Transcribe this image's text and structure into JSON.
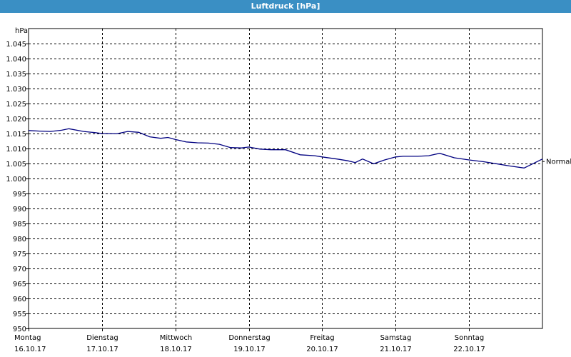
{
  "window": {
    "title": "Luftdruck [hPa]"
  },
  "chart_data": {
    "type": "line",
    "title": "Luftdruck [hPa]",
    "ylabel": "hPa",
    "xlabel": "",
    "ylim": [
      950,
      1050
    ],
    "xlim": [
      0,
      7
    ],
    "grid": true,
    "y_ticks": [
      950,
      955,
      960,
      965,
      970,
      975,
      980,
      985,
      990,
      995,
      1000,
      1005,
      1010,
      1015,
      1020,
      1025,
      1030,
      1035,
      1040,
      1045
    ],
    "y_tick_labels": [
      "950",
      "955",
      "960",
      "965",
      "970",
      "975",
      "980",
      "985",
      "990",
      "995",
      "1.000",
      "1.005",
      "1.010",
      "1.015",
      "1.020",
      "1.025",
      "1.030",
      "1.035",
      "1.040",
      "1.045"
    ],
    "x_tick_positions": [
      0,
      1,
      2,
      3,
      4,
      5,
      6
    ],
    "x_tick_labels": [
      {
        "day": "Montag",
        "date": "16.10.17"
      },
      {
        "day": "Dienstag",
        "date": "17.10.17"
      },
      {
        "day": "Mittwoch",
        "date": "18.10.17"
      },
      {
        "day": "Donnerstag",
        "date": "19.10.17"
      },
      {
        "day": "Freitag",
        "date": "20.10.17"
      },
      {
        "day": "Samstag",
        "date": "21.10.17"
      },
      {
        "day": "Sonntag",
        "date": "22.10.17"
      }
    ],
    "series": [
      {
        "name": "Normal",
        "color": "#000080",
        "x": [
          0,
          0.15,
          0.3,
          0.45,
          0.55,
          0.75,
          0.9,
          1.0,
          1.2,
          1.35,
          1.5,
          1.65,
          1.8,
          1.9,
          2.0,
          2.15,
          2.3,
          2.45,
          2.6,
          2.75,
          2.9,
          3.0,
          3.15,
          3.3,
          3.5,
          3.7,
          3.9,
          4.0,
          4.2,
          4.35,
          4.45,
          4.55,
          4.7,
          4.85,
          5.0,
          5.1,
          5.3,
          5.45,
          5.6,
          5.8,
          6.0,
          6.2,
          6.4,
          6.55,
          6.75,
          7.0
        ],
        "y": [
          1016,
          1015.8,
          1015.7,
          1016.1,
          1016.6,
          1015.7,
          1015.3,
          1015.0,
          1014.9,
          1015.7,
          1015.4,
          1013.9,
          1013.4,
          1013.7,
          1013.0,
          1012.2,
          1011.9,
          1011.8,
          1011.4,
          1010.3,
          1010.2,
          1010.5,
          1009.8,
          1009.6,
          1009.6,
          1007.9,
          1007.6,
          1007.2,
          1006.5,
          1005.9,
          1005.3,
          1006.5,
          1004.9,
          1006.2,
          1007.2,
          1007.4,
          1007.4,
          1007.6,
          1008.4,
          1006.9,
          1006.2,
          1005.6,
          1004.8,
          1004.2,
          1003.5,
          1006.5
        ]
      }
    ]
  }
}
